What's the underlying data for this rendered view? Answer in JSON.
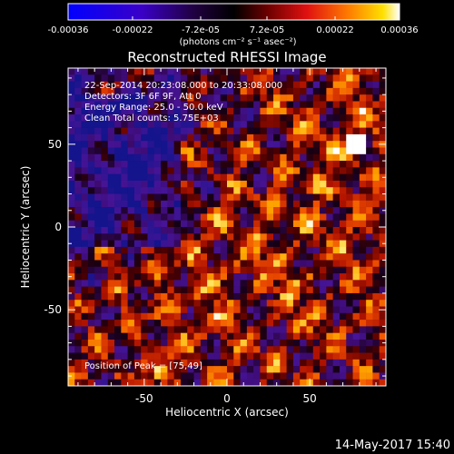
{
  "colorbar": {
    "tick_labels": [
      "-0.00036",
      "-0.00022",
      "-7.2e-05",
      "7.2e-05",
      "0.00022",
      "0.00036"
    ],
    "tick_values": [
      -0.00036,
      -0.00022,
      -7.2e-05,
      7.2e-05,
      0.00022,
      0.00036
    ],
    "range": [
      -0.00036,
      0.00036
    ],
    "unit_label": "(photons cm⁻² s⁻¹ asec⁻²)"
  },
  "plot": {
    "title": "Reconstructed RHESSI Image",
    "xlabel": "Heliocentric X (arcsec)",
    "ylabel": "Heliocentric Y (arcsec)",
    "xlim": [
      -96,
      96
    ],
    "ylim": [
      -96,
      96
    ],
    "x_ticks": [
      "-50",
      "0",
      "50"
    ],
    "x_tick_values": [
      -50,
      0,
      50
    ],
    "y_ticks": [
      "50",
      "0",
      "-50"
    ],
    "y_tick_values": [
      50,
      0,
      -50
    ],
    "annotations": [
      "22-Sep-2014 20:23:08.000 to 20:33:08.000",
      "Detectors: 3F 6F 9F, Att 0",
      "Energy Range: 25.0 - 50.0 keV",
      "Clean   Total counts: 5.75E+03"
    ],
    "peak_label": "Position of Peak = [75,49]"
  },
  "timestamp": "14-May-2017 15:40",
  "chart_data": {
    "type": "heatmap",
    "title": "Reconstructed RHESSI Image",
    "xlabel": "Heliocentric X (arcsec)",
    "ylabel": "Heliocentric Y (arcsec)",
    "xlim": [
      -96,
      96
    ],
    "ylim": [
      -96,
      96
    ],
    "value_range": [
      -0.00036,
      0.00036
    ],
    "peak_position": [
      75,
      49
    ],
    "colormap": [
      "#0000ff",
      "#4a00a0",
      "#000000",
      "#8b0000",
      "#ff4500",
      "#ffd700",
      "#ffffff"
    ]
  }
}
